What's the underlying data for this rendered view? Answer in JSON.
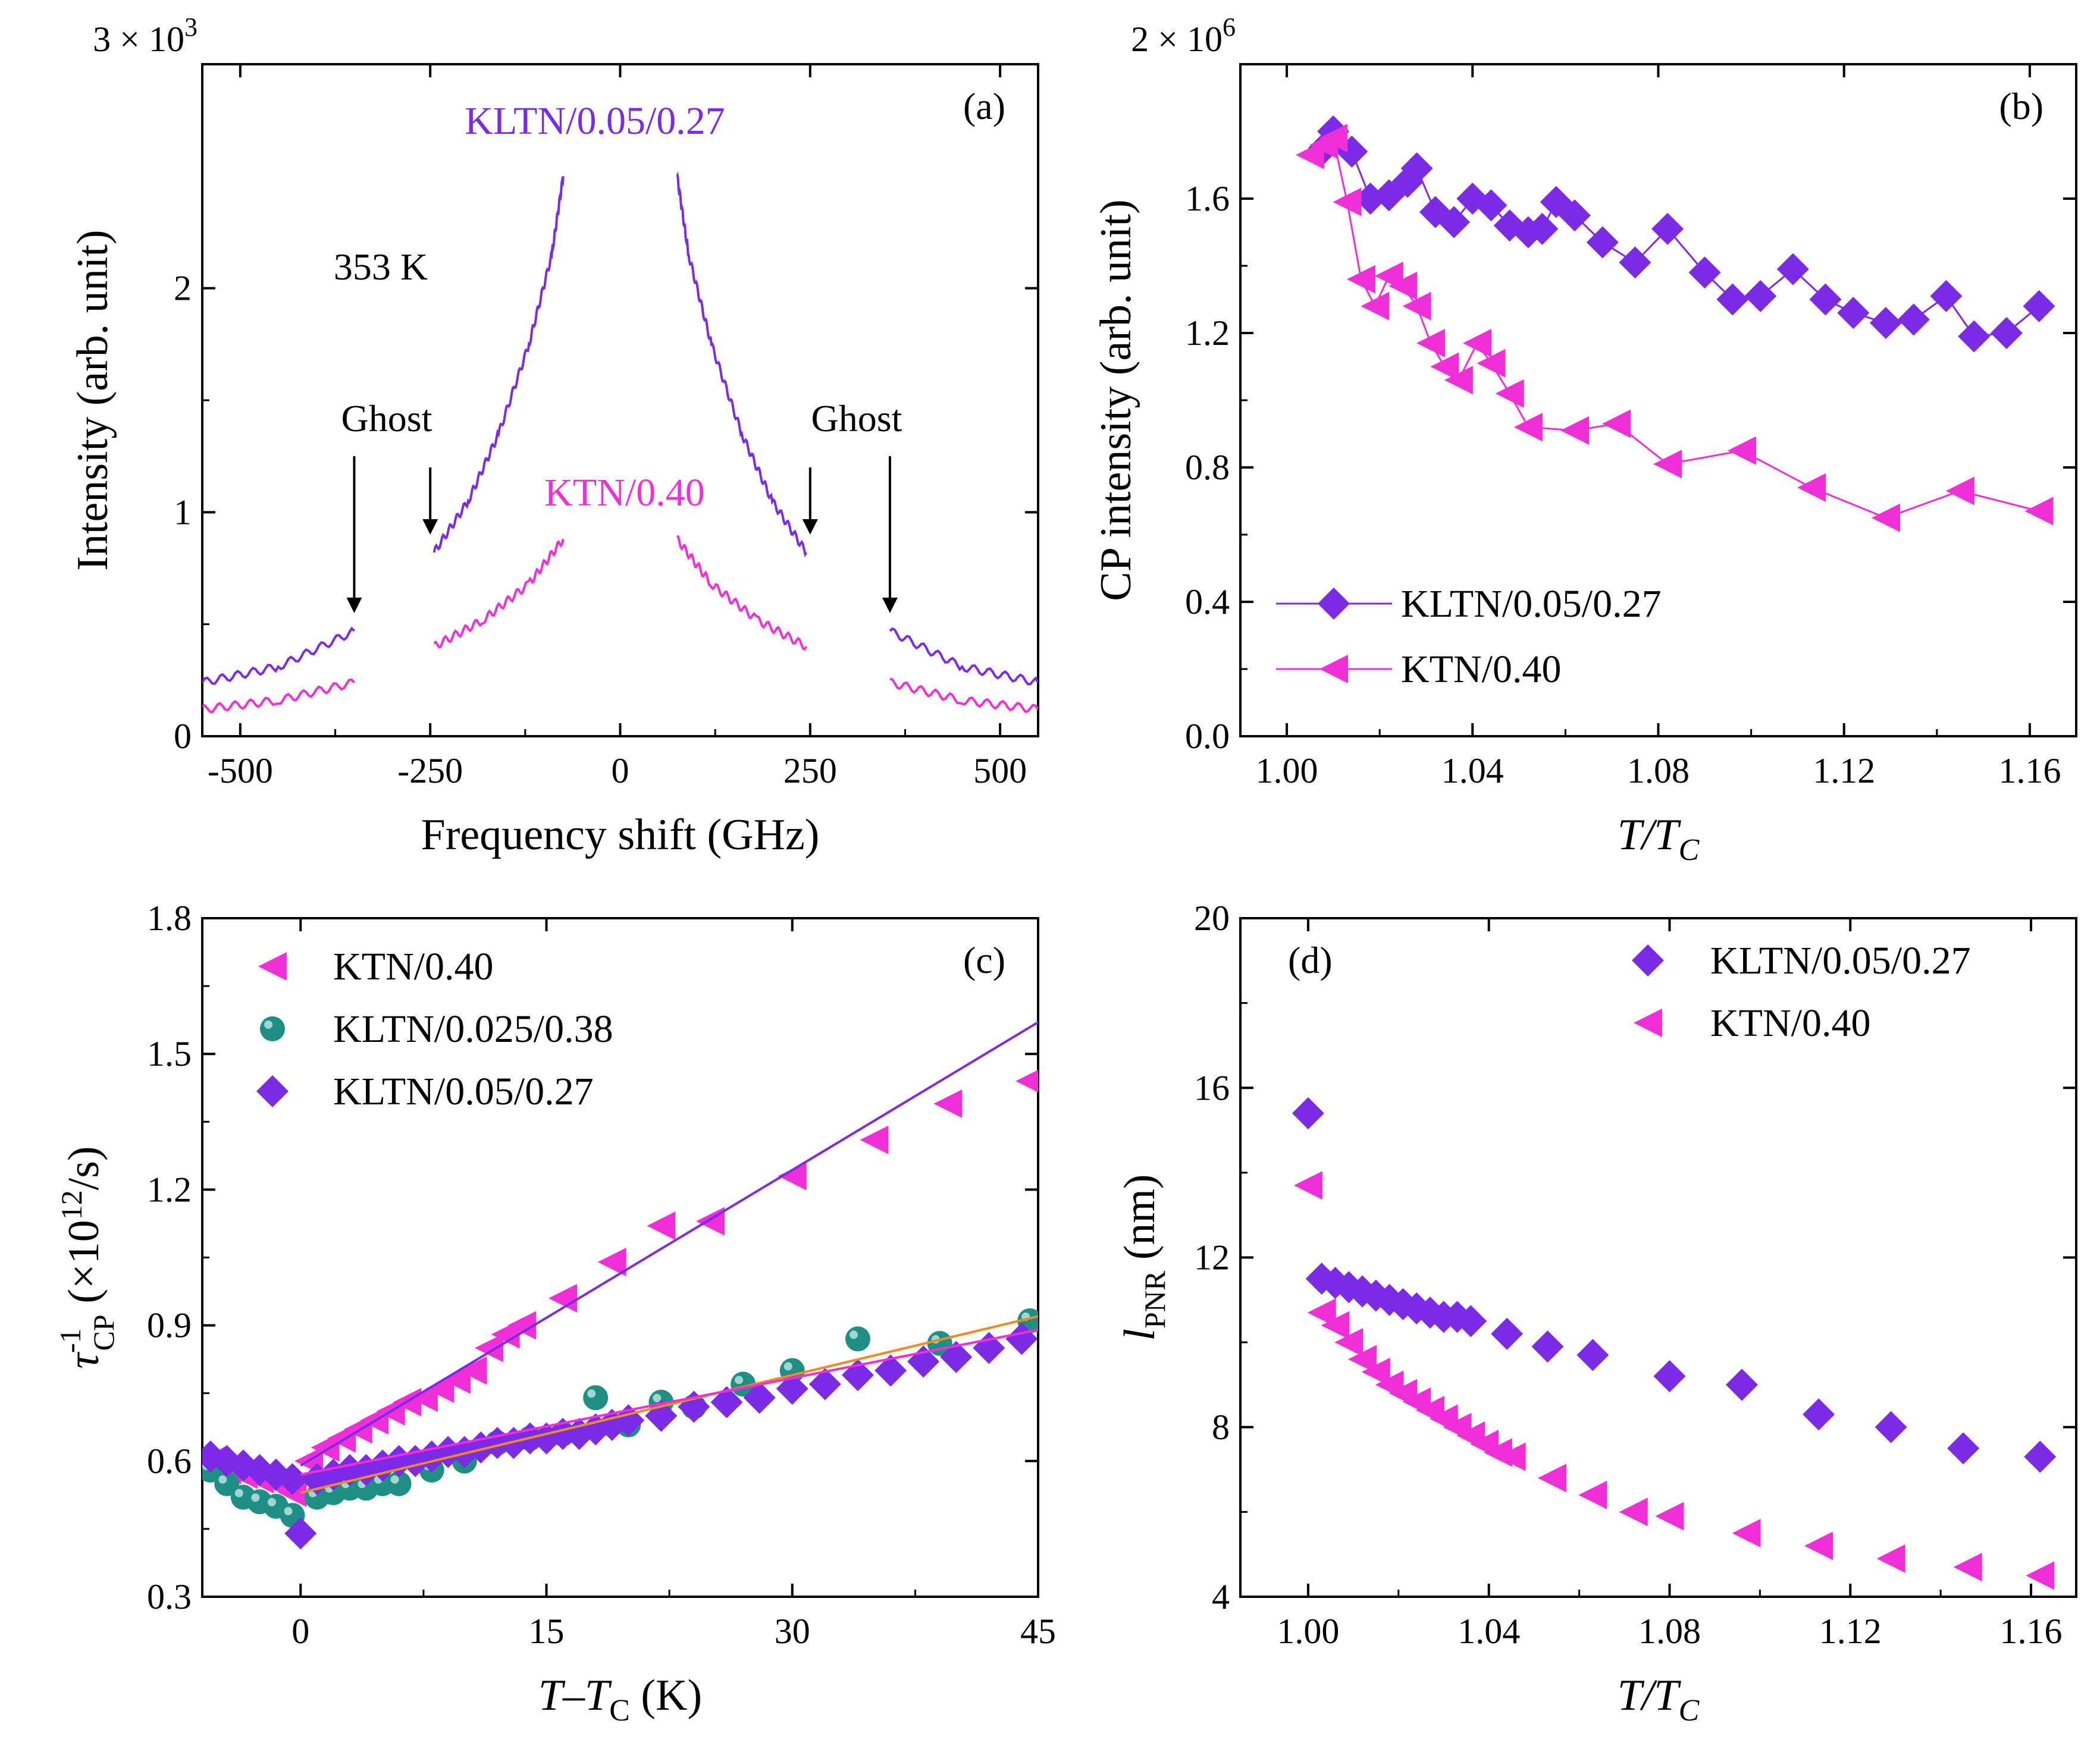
{
  "colors": {
    "violet": "#7B2BE6",
    "magenta": "#F02FD8",
    "teal": "#1F8F86",
    "orange": "#F08A1E",
    "axis": "#000000"
  },
  "chart_data": [
    {
      "id": "a",
      "type": "line",
      "panel_label": "(a)",
      "ylabel": "Intensity (arb. unit)",
      "xlabel": "Frequency shift (GHz)",
      "xlim": [
        -550,
        550
      ],
      "ylim": [
        0,
        3
      ],
      "xticks": [
        -500,
        -250,
        0,
        250,
        500
      ],
      "xtick_labels": [
        "-500",
        "-250",
        "0",
        "250",
        "500"
      ],
      "yticks": [
        0,
        1,
        2
      ],
      "ytick_labels": [
        "0",
        "1",
        "2"
      ],
      "y_scale_label": "3 × 10",
      "y_scale_exp": "3",
      "temperature_label": "353 K",
      "series": [
        {
          "name": "KLTN/0.05/0.27",
          "color_key": "violet",
          "segments": [
            [
              [
                -550,
                0.24
              ],
              [
                -450,
                0.31
              ],
              [
                -350,
                0.47
              ]
            ],
            [
              [
                -245,
                0.82
              ],
              [
                -200,
                1.05
              ],
              [
                -160,
                1.35
              ],
              [
                -120,
                1.75
              ],
              [
                -90,
                2.15
              ],
              [
                -75,
                2.5
              ]
            ],
            [
              [
                75,
                2.5
              ],
              [
                90,
                2.15
              ],
              [
                120,
                1.75
              ],
              [
                160,
                1.35
              ],
              [
                200,
                1.05
              ],
              [
                245,
                0.82
              ]
            ],
            [
              [
                355,
                0.47
              ],
              [
                450,
                0.31
              ],
              [
                550,
                0.24
              ]
            ]
          ]
        },
        {
          "name": "KTN/0.40",
          "color_key": "magenta",
          "segments": [
            [
              [
                -550,
                0.12
              ],
              [
                -450,
                0.16
              ],
              [
                -350,
                0.24
              ]
            ],
            [
              [
                -245,
                0.4
              ],
              [
                -180,
                0.52
              ],
              [
                -120,
                0.68
              ],
              [
                -75,
                0.88
              ]
            ],
            [
              [
                75,
                0.88
              ],
              [
                120,
                0.68
              ],
              [
                180,
                0.52
              ],
              [
                245,
                0.4
              ]
            ],
            [
              [
                355,
                0.24
              ],
              [
                450,
                0.16
              ],
              [
                550,
                0.12
              ]
            ]
          ]
        }
      ],
      "series_labels": [
        {
          "text": "KLTN/0.05/0.27",
          "color_key": "violet"
        },
        {
          "text": "KTN/0.40",
          "color_key": "magenta"
        }
      ],
      "annotations": [
        {
          "text": "Ghost",
          "side": "left"
        },
        {
          "text": "Ghost",
          "side": "right"
        }
      ],
      "arrows": [
        {
          "x": -350,
          "y_top": 1.25,
          "y_tip": 0.55
        },
        {
          "x": -250,
          "y_top": 1.2,
          "y_tip": 0.9
        },
        {
          "x": 250,
          "y_top": 1.2,
          "y_tip": 0.9
        },
        {
          "x": 355,
          "y_top": 1.25,
          "y_tip": 0.55
        }
      ]
    },
    {
      "id": "b",
      "type": "line",
      "panel_label": "(b)",
      "ylabel": "CP intensity (arb. unit)",
      "xlabel": "T/T",
      "xlabel_sub": "C",
      "xlim": [
        0.99,
        1.17
      ],
      "ylim": [
        0,
        2
      ],
      "xticks": [
        1.0,
        1.04,
        1.08,
        1.12,
        1.16
      ],
      "xtick_labels": [
        "1.00",
        "1.04",
        "1.08",
        "1.12",
        "1.16"
      ],
      "yticks": [
        0,
        0.4,
        0.8,
        1.2,
        1.6
      ],
      "ytick_labels": [
        "0.0",
        "0.4",
        "0.8",
        "1.2",
        "1.6"
      ],
      "y_scale_label": "2 × 10",
      "y_scale_exp": "6",
      "legend": [
        {
          "text": "KLTN/0.05/0.27",
          "color_key": "violet",
          "marker": "diamond"
        },
        {
          "text": "KTN/0.40",
          "color_key": "magenta",
          "marker": "triangle-left"
        }
      ],
      "series": [
        {
          "name": "KLTN/0.05/0.27",
          "color_key": "violet",
          "marker": "diamond",
          "x": [
            1.008,
            1.01,
            1.014,
            1.018,
            1.022,
            1.026,
            1.028,
            1.032,
            1.036,
            1.04,
            1.044,
            1.048,
            1.052,
            1.055,
            1.058,
            1.062,
            1.068,
            1.075,
            1.082,
            1.09,
            1.096,
            1.102,
            1.109,
            1.116,
            1.122,
            1.129,
            1.135,
            1.142,
            1.148,
            1.155,
            1.162
          ],
          "y": [
            1.75,
            1.8,
            1.74,
            1.6,
            1.61,
            1.65,
            1.69,
            1.56,
            1.53,
            1.6,
            1.58,
            1.52,
            1.5,
            1.51,
            1.59,
            1.55,
            1.47,
            1.41,
            1.51,
            1.38,
            1.3,
            1.31,
            1.39,
            1.3,
            1.26,
            1.23,
            1.24,
            1.31,
            1.19,
            1.2,
            1.28
          ]
        },
        {
          "name": "KTN/0.40",
          "color_key": "magenta",
          "marker": "triangle-left",
          "x": [
            1.005,
            1.008,
            1.01,
            1.013,
            1.016,
            1.019,
            1.022,
            1.025,
            1.028,
            1.031,
            1.034,
            1.037,
            1.041,
            1.044,
            1.048,
            1.052,
            1.062,
            1.071,
            1.082,
            1.098,
            1.113,
            1.129,
            1.145,
            1.162
          ],
          "y": [
            1.73,
            1.76,
            1.78,
            1.59,
            1.36,
            1.28,
            1.37,
            1.34,
            1.28,
            1.17,
            1.1,
            1.06,
            1.17,
            1.11,
            1.02,
            0.92,
            0.91,
            0.93,
            0.81,
            0.85,
            0.74,
            0.65,
            0.73,
            0.67
          ]
        }
      ]
    },
    {
      "id": "c",
      "type": "scatter",
      "panel_label": "(c)",
      "ylabel_main": "τ",
      "ylabel_sup": "-1",
      "ylabel_sub": "CP",
      "ylabel_rest": "(×10",
      "ylabel_exp": "12",
      "ylabel_end": "/s)",
      "xlabel": "T–T",
      "xlabel_sub": "C",
      "xlabel_unit": "(K)",
      "xlim": [
        -6,
        45
      ],
      "ylim": [
        0.3,
        1.8
      ],
      "xticks": [
        0,
        15,
        30,
        45
      ],
      "xtick_labels": [
        "0",
        "15",
        "30",
        "45"
      ],
      "yticks": [
        0.3,
        0.6,
        0.9,
        1.2,
        1.5,
        1.8
      ],
      "ytick_labels": [
        "0.3",
        "0.6",
        "0.9",
        "1.2",
        "1.5",
        "1.8"
      ],
      "legend": [
        {
          "text": "KTN/0.40",
          "color_key": "magenta",
          "marker": "triangle-left"
        },
        {
          "text": "KLTN/0.025/0.38",
          "color_key": "teal",
          "marker": "circle"
        },
        {
          "text": "KLTN/0.05/0.27",
          "color_key": "violet",
          "marker": "diamond"
        }
      ],
      "series": [
        {
          "name": "KTN/0.40",
          "color_key": "magenta",
          "marker": "triangle-left",
          "x": [
            -5.5,
            -4.5,
            -3.5,
            -2.5,
            -1.5,
            -0.5,
            0.5,
            1.5,
            2.5,
            3.5,
            4.5,
            5.5,
            6.5,
            7.5,
            8.5,
            9.5,
            10.5,
            11.5,
            12.5,
            13.5,
            16,
            19,
            22,
            25,
            30,
            35,
            39.5,
            44.5
          ],
          "y": [
            0.6,
            0.58,
            0.57,
            0.56,
            0.55,
            0.53,
            0.6,
            0.63,
            0.65,
            0.67,
            0.69,
            0.71,
            0.73,
            0.74,
            0.76,
            0.78,
            0.8,
            0.85,
            0.88,
            0.9,
            0.96,
            1.04,
            1.12,
            1.13,
            1.23,
            1.31,
            1.39,
            1.44
          ]
        },
        {
          "name": "KLTN/0.025/0.38",
          "color_key": "teal",
          "marker": "circle",
          "x": [
            -5.5,
            -4.5,
            -3.5,
            -2.5,
            -1.5,
            -0.5,
            1,
            2,
            3,
            4,
            5,
            6,
            8,
            10,
            12,
            14,
            16,
            18,
            20,
            22,
            24,
            27,
            30,
            34,
            39,
            44.5
          ],
          "y": [
            0.58,
            0.55,
            0.52,
            0.51,
            0.5,
            0.48,
            0.52,
            0.53,
            0.54,
            0.54,
            0.55,
            0.55,
            0.58,
            0.6,
            0.64,
            0.65,
            0.66,
            0.74,
            0.68,
            0.73,
            0.72,
            0.77,
            0.8,
            0.87,
            0.86,
            0.91
          ]
        },
        {
          "name": "KLTN/0.05/0.27",
          "color_key": "violet",
          "marker": "diamond",
          "x": [
            -5.5,
            -4.5,
            -3.5,
            -2.5,
            -1.5,
            -0.5,
            0,
            1,
            2,
            3,
            4,
            5,
            6,
            7,
            8,
            9,
            10,
            11,
            12,
            13,
            14,
            15,
            16,
            17,
            18,
            19,
            20,
            22,
            24,
            26,
            28,
            30,
            32,
            34,
            36,
            38,
            40,
            42,
            44
          ],
          "y": [
            0.61,
            0.6,
            0.59,
            0.58,
            0.57,
            0.56,
            0.44,
            0.56,
            0.57,
            0.58,
            0.58,
            0.59,
            0.6,
            0.6,
            0.61,
            0.62,
            0.62,
            0.63,
            0.64,
            0.64,
            0.65,
            0.65,
            0.66,
            0.66,
            0.67,
            0.68,
            0.69,
            0.7,
            0.72,
            0.73,
            0.74,
            0.76,
            0.77,
            0.79,
            0.8,
            0.82,
            0.83,
            0.85,
            0.87
          ]
        }
      ],
      "fits": [
        {
          "color_key": "violet",
          "x": [
            0,
            45
          ],
          "y": [
            0.59,
            1.57
          ]
        },
        {
          "color_key": "orange",
          "x": [
            0,
            45
          ],
          "y": [
            0.53,
            0.92
          ]
        },
        {
          "color_key": "magenta",
          "x": [
            0,
            45
          ],
          "y": [
            0.57,
            0.89
          ]
        }
      ]
    },
    {
      "id": "d",
      "type": "scatter",
      "panel_label": "(d)",
      "ylabel_main": "l",
      "ylabel_sub": "PNR",
      "ylabel_unit": "(nm)",
      "xlabel": "T/T",
      "xlabel_sub": "C",
      "xlim": [
        0.985,
        1.17
      ],
      "ylim": [
        4,
        20
      ],
      "xticks": [
        1.0,
        1.04,
        1.08,
        1.12,
        1.16
      ],
      "xtick_labels": [
        "1.00",
        "1.04",
        "1.08",
        "1.12",
        "1.16"
      ],
      "yticks": [
        4,
        8,
        12,
        16,
        20
      ],
      "ytick_labels": [
        "4",
        "8",
        "12",
        "16",
        "20"
      ],
      "legend": [
        {
          "text": "KLTN/0.05/0.27",
          "color_key": "violet",
          "marker": "diamond"
        },
        {
          "text": "KTN/0.40",
          "color_key": "magenta",
          "marker": "triangle-left"
        }
      ],
      "series": [
        {
          "name": "KLTN/0.05/0.27",
          "color_key": "violet",
          "marker": "diamond",
          "x": [
            1.0,
            1.003,
            1.006,
            1.009,
            1.012,
            1.015,
            1.018,
            1.021,
            1.024,
            1.027,
            1.03,
            1.033,
            1.036,
            1.044,
            1.053,
            1.063,
            1.08,
            1.096,
            1.113,
            1.129,
            1.145,
            1.162
          ],
          "y": [
            15.4,
            11.5,
            11.4,
            11.3,
            11.2,
            11.1,
            11.0,
            10.9,
            10.8,
            10.7,
            10.6,
            10.6,
            10.5,
            10.2,
            9.9,
            9.7,
            9.2,
            9.0,
            8.3,
            8.0,
            7.5,
            7.3
          ]
        },
        {
          "name": "KTN/0.40",
          "color_key": "magenta",
          "marker": "triangle-left",
          "x": [
            1.0,
            1.003,
            1.006,
            1.009,
            1.012,
            1.015,
            1.018,
            1.021,
            1.024,
            1.027,
            1.03,
            1.033,
            1.036,
            1.039,
            1.042,
            1.045,
            1.054,
            1.063,
            1.072,
            1.08,
            1.097,
            1.113,
            1.129,
            1.146,
            1.162
          ],
          "y": [
            13.7,
            10.7,
            10.4,
            10.0,
            9.6,
            9.3,
            9.0,
            8.8,
            8.6,
            8.4,
            8.2,
            8.0,
            7.8,
            7.6,
            7.4,
            7.3,
            6.8,
            6.4,
            6.0,
            5.9,
            5.5,
            5.2,
            4.9,
            4.7,
            4.5
          ]
        }
      ]
    }
  ]
}
